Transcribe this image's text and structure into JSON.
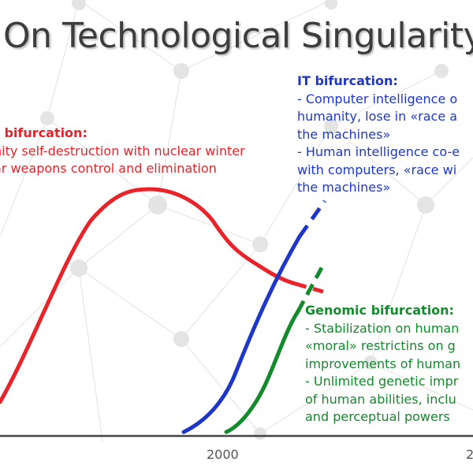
{
  "title": "On Technological Singularity",
  "colors": {
    "nuclear": "#e8242a",
    "it": "#1e37c9",
    "genomic": "#138a2c",
    "axis": "#444444"
  },
  "nuclear": {
    "heading": "r  bifurcation:",
    "lines": [
      "nity self-destruction with nuclear winter",
      "ar weapons control and elimination"
    ]
  },
  "it": {
    "heading": "IT bifurcation:",
    "lines": [
      "- Computer intelligence o",
      "humanity, lose in «race a",
      "the machines»",
      "- Human intelligence co-e",
      "with computers, «race wi",
      "the machines»"
    ]
  },
  "genomic": {
    "heading": "Genomic  bifurcation:",
    "lines": [
      "- Stabilization on human",
      "«moral» restrictins on g",
      "improvements of human",
      "- Unlimited genetic impr",
      "of human abilities, inclu",
      "and perceptual powers"
    ]
  },
  "axis": {
    "ticks": [
      "2000",
      "2"
    ]
  }
}
